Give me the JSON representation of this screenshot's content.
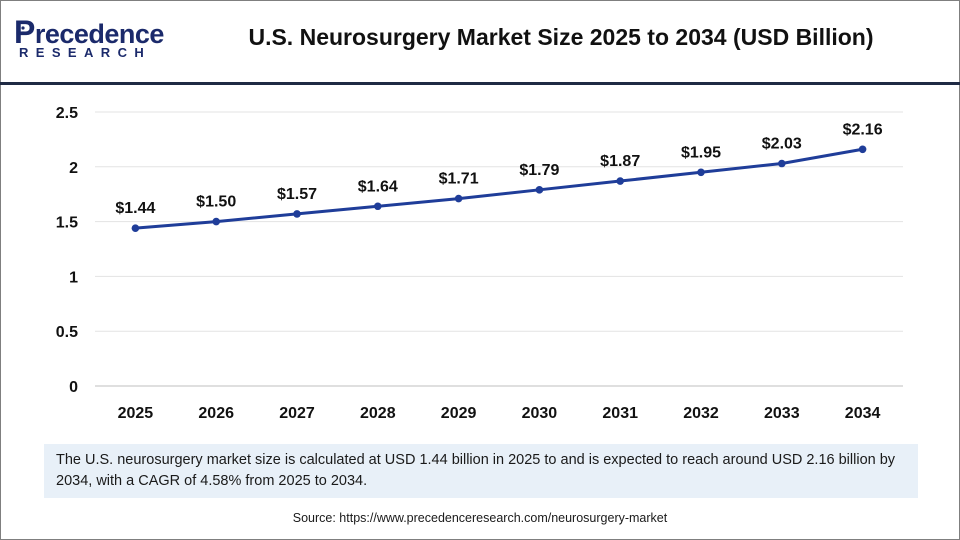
{
  "logo": {
    "main_initial": "P",
    "main_rest": "recedence",
    "sub": "RESEARCH"
  },
  "title": "U.S. Neurosurgery Market Size 2025 to 2034 (USD Billion)",
  "chart_data": {
    "type": "line",
    "title": "U.S. Neurosurgery Market Size 2025 to 2034 (USD Billion)",
    "xlabel": "",
    "ylabel": "",
    "categories": [
      "2025",
      "2026",
      "2027",
      "2028",
      "2029",
      "2030",
      "2031",
      "2032",
      "2033",
      "2034"
    ],
    "values": [
      1.44,
      1.5,
      1.57,
      1.64,
      1.71,
      1.79,
      1.87,
      1.95,
      2.03,
      2.16
    ],
    "data_labels": [
      "$1.44",
      "$1.50",
      "$1.57",
      "$1.64",
      "$1.71",
      "$1.79",
      "$1.87",
      "$1.95",
      "$2.03",
      "$2.16"
    ],
    "ylim": [
      0,
      2.5
    ],
    "yticks": [
      0,
      0.5,
      1,
      1.5,
      2,
      2.5
    ],
    "ytick_labels": [
      "0",
      "0.5",
      "1",
      "1.5",
      "2",
      "2.5"
    ],
    "grid": true,
    "line_color": "#1f3d99"
  },
  "description": "The U.S. neurosurgery market size is calculated at USD 1.44 billion in 2025 to and is expected to reach around USD 2.16 billion by 2034, with a CAGR of 4.58% from 2025 to 2034.",
  "source": "Source: https://www.precedenceresearch.com/neurosurgery-market"
}
